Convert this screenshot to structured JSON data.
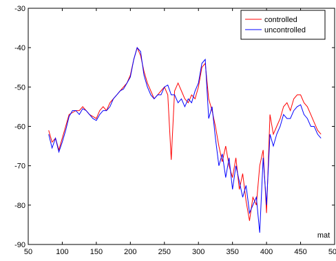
{
  "chart_data": {
    "type": "line",
    "xlabel": "mat",
    "x": [
      80,
      85,
      90,
      95,
      100,
      105,
      110,
      115,
      120,
      125,
      130,
      135,
      140,
      145,
      150,
      155,
      160,
      165,
      170,
      175,
      180,
      185,
      190,
      195,
      200,
      205,
      210,
      215,
      220,
      225,
      230,
      235,
      240,
      245,
      250,
      255,
      260,
      265,
      270,
      275,
      280,
      285,
      290,
      295,
      300,
      305,
      310,
      315,
      320,
      325,
      330,
      335,
      340,
      345,
      350,
      355,
      360,
      365,
      370,
      375,
      380,
      385,
      390,
      395,
      400,
      405,
      410,
      415,
      420,
      425,
      430,
      435,
      440,
      445,
      450,
      455,
      460,
      465,
      470,
      475,
      480
    ],
    "series": [
      {
        "name": "controlled",
        "color": "#ff0000",
        "values": [
          -61,
          -64,
          -63,
          -66,
          -63,
          -60,
          -57,
          -56.5,
          -56,
          -56,
          -55,
          -56,
          -57,
          -57.5,
          -58,
          -56,
          -55,
          -56,
          -54,
          -53,
          -52,
          -51,
          -50,
          -49,
          -47,
          -43,
          -40,
          -42,
          -46,
          -49,
          -51,
          -53,
          -52,
          -51,
          -50,
          -52,
          -68.5,
          -51,
          -49,
          -51,
          -53,
          -54,
          -52,
          -53,
          -50,
          -45,
          -44,
          -53,
          -56,
          -60,
          -65,
          -69,
          -65,
          -70,
          -73,
          -68,
          -76,
          -72,
          -79,
          -84,
          -78,
          -80,
          -70,
          -66,
          -82,
          -57,
          -62,
          -60,
          -58,
          -55,
          -54,
          -56,
          -53,
          -52,
          -52,
          -54,
          -55,
          -57,
          -59,
          -61,
          -62
        ]
      },
      {
        "name": "uncontrolled",
        "color": "#0000ff",
        "values": [
          -62,
          -65.5,
          -63,
          -66.5,
          -64,
          -61,
          -57.5,
          -56,
          -56,
          -57,
          -55.5,
          -56,
          -57,
          -58,
          -58.5,
          -57,
          -56,
          -56,
          -55,
          -53,
          -52,
          -51,
          -50.5,
          -49,
          -47.5,
          -43,
          -40,
          -41,
          -47,
          -50,
          -52,
          -53,
          -52,
          -52,
          -50,
          -49.5,
          -52,
          -52,
          -54,
          -53,
          -55,
          -53,
          -54,
          -51,
          -49,
          -44,
          -43,
          -58,
          -55,
          -63,
          -70,
          -67,
          -73,
          -68,
          -76,
          -70,
          -74,
          -78,
          -75,
          -82,
          -80,
          -78,
          -87,
          -68,
          -80,
          -62,
          -65,
          -62,
          -60,
          -57,
          -58,
          -58,
          -56,
          -55,
          -54.5,
          -57,
          -58,
          -60,
          -60,
          -62,
          -63
        ]
      }
    ],
    "xlim": [
      50,
      500
    ],
    "xticks": [
      50,
      100,
      150,
      200,
      250,
      300,
      350,
      400,
      450,
      500
    ],
    "ylim": [
      -90,
      -30
    ],
    "yticks": [
      -90,
      -80,
      -70,
      -60,
      -50,
      -40,
      -30
    ],
    "legend": "top-right"
  }
}
